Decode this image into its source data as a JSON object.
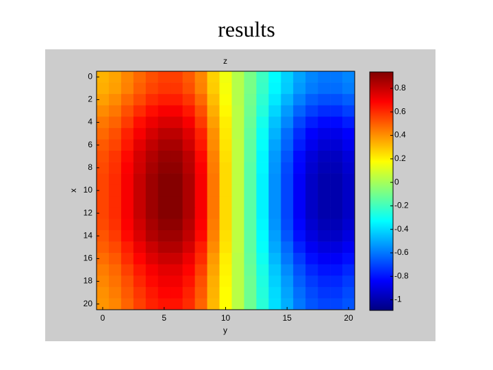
{
  "chart_data": {
    "type": "heatmap",
    "title": "results",
    "subtitle": "z",
    "xlabel": "y",
    "ylabel": "x",
    "colormap": "jet",
    "colorbar": true,
    "x": [
      0,
      1,
      2,
      3,
      4,
      5,
      6,
      7,
      8,
      9,
      10,
      11,
      12,
      13,
      14,
      15,
      16,
      17,
      18,
      19,
      20
    ],
    "y": [
      0,
      1,
      2,
      3,
      4,
      5,
      6,
      7,
      8,
      9,
      10,
      11,
      12,
      13,
      14,
      15,
      16,
      17,
      18,
      19,
      20
    ],
    "z": [
      [
        0.33,
        0.36,
        0.42,
        0.48,
        0.53,
        0.56,
        0.56,
        0.51,
        0.42,
        0.27,
        0.15,
        0.03,
        -0.09,
        -0.21,
        -0.33,
        -0.42,
        -0.51,
        -0.57,
        -0.6,
        -0.6,
        -0.57
      ],
      [
        0.34,
        0.37,
        0.43,
        0.5,
        0.55,
        0.58,
        0.58,
        0.53,
        0.43,
        0.28,
        0.16,
        0.03,
        -0.09,
        -0.22,
        -0.34,
        -0.43,
        -0.53,
        -0.59,
        -0.62,
        -0.62,
        -0.59
      ],
      [
        0.37,
        0.41,
        0.48,
        0.54,
        0.6,
        0.63,
        0.63,
        0.58,
        0.48,
        0.31,
        0.17,
        0.03,
        -0.1,
        -0.24,
        -0.37,
        -0.48,
        -0.58,
        -0.65,
        -0.68,
        -0.68,
        -0.65
      ],
      [
        0.41,
        0.45,
        0.53,
        0.6,
        0.66,
        0.7,
        0.7,
        0.64,
        0.53,
        0.34,
        0.19,
        0.04,
        -0.11,
        -0.26,
        -0.41,
        -0.53,
        -0.64,
        -0.71,
        -0.75,
        -0.75,
        -0.71
      ],
      [
        0.45,
        0.49,
        0.57,
        0.66,
        0.72,
        0.76,
        0.76,
        0.7,
        0.57,
        0.37,
        0.21,
        0.04,
        -0.12,
        -0.29,
        -0.45,
        -0.57,
        -0.7,
        -0.78,
        -0.82,
        -0.82,
        -0.78
      ],
      [
        0.48,
        0.53,
        0.62,
        0.7,
        0.77,
        0.82,
        0.82,
        0.75,
        0.62,
        0.4,
        0.22,
        0.04,
        -0.13,
        -0.31,
        -0.48,
        -0.62,
        -0.75,
        -0.84,
        -0.88,
        -0.88,
        -0.84
      ],
      [
        0.51,
        0.55,
        0.64,
        0.74,
        0.81,
        0.86,
        0.86,
        0.78,
        0.64,
        0.41,
        0.23,
        0.05,
        -0.14,
        -0.32,
        -0.51,
        -0.64,
        -0.78,
        -0.87,
        -0.92,
        -0.92,
        -0.87
      ],
      [
        0.53,
        0.58,
        0.67,
        0.77,
        0.84,
        0.89,
        0.89,
        0.82,
        0.67,
        0.43,
        0.24,
        0.05,
        -0.14,
        -0.34,
        -0.53,
        -0.67,
        -0.82,
        -0.91,
        -0.96,
        -0.96,
        -0.91
      ],
      [
        0.54,
        0.59,
        0.69,
        0.78,
        0.86,
        0.91,
        0.91,
        0.83,
        0.69,
        0.44,
        0.25,
        0.05,
        -0.15,
        -0.34,
        -0.54,
        -0.69,
        -0.83,
        -0.93,
        -0.98,
        -0.98,
        -0.93
      ],
      [
        0.55,
        0.6,
        0.7,
        0.8,
        0.88,
        0.93,
        0.93,
        0.85,
        0.7,
        0.45,
        0.25,
        0.05,
        -0.15,
        -0.35,
        -0.55,
        -0.7,
        -0.85,
        -0.95,
        -1.0,
        -1.0,
        -0.95
      ],
      [
        0.55,
        0.6,
        0.7,
        0.8,
        0.88,
        0.93,
        0.93,
        0.85,
        0.7,
        0.45,
        0.25,
        0.05,
        -0.15,
        -0.35,
        -0.55,
        -0.7,
        -0.85,
        -0.95,
        -1.0,
        -1.0,
        -0.95
      ],
      [
        0.55,
        0.6,
        0.7,
        0.8,
        0.88,
        0.93,
        0.93,
        0.85,
        0.7,
        0.45,
        0.25,
        0.05,
        -0.15,
        -0.35,
        -0.55,
        -0.7,
        -0.85,
        -0.95,
        -1.0,
        -1.0,
        -0.95
      ],
      [
        0.55,
        0.6,
        0.7,
        0.8,
        0.88,
        0.93,
        0.93,
        0.85,
        0.7,
        0.45,
        0.25,
        0.05,
        -0.15,
        -0.35,
        -0.55,
        -0.7,
        -0.85,
        -0.95,
        -1.0,
        -1.0,
        -0.95
      ],
      [
        0.54,
        0.59,
        0.69,
        0.78,
        0.86,
        0.91,
        0.91,
        0.83,
        0.69,
        0.44,
        0.25,
        0.05,
        -0.15,
        -0.34,
        -0.54,
        -0.69,
        -0.83,
        -0.93,
        -0.98,
        -0.98,
        -0.93
      ],
      [
        0.52,
        0.57,
        0.67,
        0.76,
        0.84,
        0.88,
        0.88,
        0.81,
        0.67,
        0.43,
        0.24,
        0.05,
        -0.14,
        -0.33,
        -0.52,
        -0.67,
        -0.81,
        -0.9,
        -0.95,
        -0.95,
        -0.9
      ],
      [
        0.5,
        0.54,
        0.63,
        0.72,
        0.79,
        0.84,
        0.84,
        0.77,
        0.63,
        0.41,
        0.23,
        0.05,
        -0.14,
        -0.32,
        -0.5,
        -0.63,
        -0.77,
        -0.86,
        -0.9,
        -0.9,
        -0.86
      ],
      [
        0.47,
        0.51,
        0.6,
        0.68,
        0.75,
        0.79,
        0.79,
        0.72,
        0.6,
        0.38,
        0.21,
        0.04,
        -0.13,
        -0.3,
        -0.47,
        -0.6,
        -0.72,
        -0.81,
        -0.85,
        -0.85,
        -0.81
      ],
      [
        0.44,
        0.48,
        0.56,
        0.64,
        0.7,
        0.74,
        0.74,
        0.68,
        0.56,
        0.36,
        0.2,
        0.04,
        -0.12,
        -0.28,
        -0.44,
        -0.56,
        -0.68,
        -0.76,
        -0.8,
        -0.8,
        -0.76
      ],
      [
        0.42,
        0.46,
        0.53,
        0.61,
        0.67,
        0.71,
        0.71,
        0.65,
        0.53,
        0.34,
        0.19,
        0.04,
        -0.11,
        -0.27,
        -0.42,
        -0.53,
        -0.65,
        -0.72,
        -0.76,
        -0.76,
        -0.72
      ],
      [
        0.4,
        0.44,
        0.51,
        0.58,
        0.64,
        0.68,
        0.68,
        0.62,
        0.51,
        0.33,
        0.18,
        0.04,
        -0.11,
        -0.26,
        -0.4,
        -0.51,
        -0.62,
        -0.69,
        -0.73,
        -0.73,
        -0.69
      ],
      [
        0.39,
        0.42,
        0.49,
        0.56,
        0.62,
        0.65,
        0.65,
        0.6,
        0.49,
        0.32,
        0.18,
        0.04,
        -0.11,
        -0.25,
        -0.39,
        -0.49,
        -0.6,
        -0.67,
        -0.7,
        -0.7,
        -0.67
      ]
    ],
    "xlim": [
      -0.5,
      20.5
    ],
    "xticks": [
      0,
      5,
      10,
      15,
      20
    ],
    "ylim": [
      -0.5,
      20.5
    ],
    "y_direction": "reverse",
    "yticks": [
      0,
      2,
      4,
      6,
      8,
      10,
      12,
      14,
      16,
      18,
      20
    ],
    "clim": [
      -1.09,
      0.94
    ],
    "cticks": [
      -1,
      -0.8,
      -0.6,
      -0.4,
      -0.2,
      0,
      0.2,
      0.4,
      0.6,
      0.8
    ]
  }
}
